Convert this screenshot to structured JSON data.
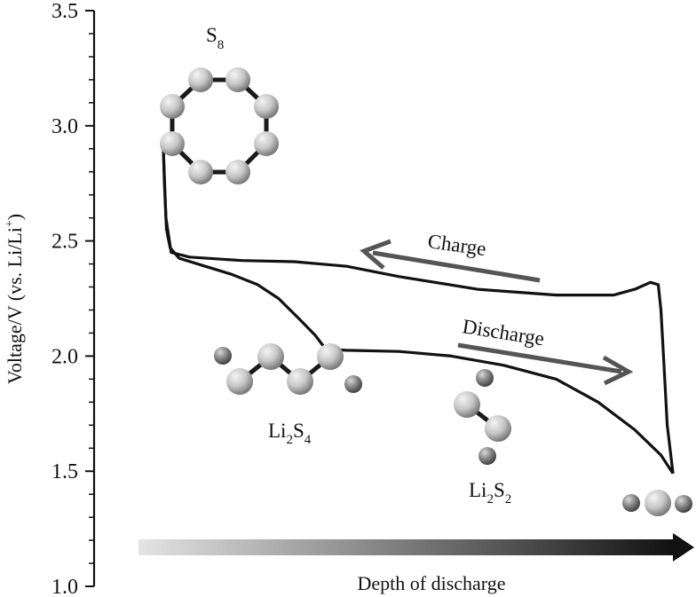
{
  "chart_data": {
    "type": "line",
    "title": "",
    "ylabel": "Voltage/V (vs. Li/Li+)",
    "ylabel_parts": {
      "main": "Voltage/V (vs. Li/Li",
      "sup": "+",
      "tail": ")"
    },
    "xlabel": "Depth of discharge",
    "ylim": [
      1.0,
      3.5
    ],
    "xlim": [
      0,
      1
    ],
    "y_ticks": [
      "1.0",
      "1.5",
      "2.0",
      "2.5",
      "3.0",
      "3.5"
    ],
    "x_axis": {
      "gradient_from": "#e4e4e4",
      "gradient_to": "#111111"
    },
    "grid": false,
    "series": [
      {
        "label": "discharge",
        "color": "#111111",
        "points": [
          [
            0.0,
            2.9
          ],
          [
            0.002,
            2.75
          ],
          [
            0.006,
            2.55
          ],
          [
            0.013,
            2.47
          ],
          [
            0.03,
            2.425
          ],
          [
            0.08,
            2.39
          ],
          [
            0.13,
            2.355
          ],
          [
            0.18,
            2.31
          ],
          [
            0.22,
            2.25
          ],
          [
            0.26,
            2.16
          ],
          [
            0.29,
            2.09
          ],
          [
            0.31,
            2.03
          ],
          [
            0.35,
            2.025
          ],
          [
            0.45,
            2.02
          ],
          [
            0.55,
            2.0
          ],
          [
            0.65,
            1.96
          ],
          [
            0.75,
            1.9
          ],
          [
            0.83,
            1.8
          ],
          [
            0.9,
            1.68
          ],
          [
            0.95,
            1.57
          ],
          [
            0.973,
            1.49
          ]
        ]
      },
      {
        "label": "charge",
        "color": "#111111",
        "points": [
          [
            0.973,
            1.49
          ],
          [
            0.962,
            1.7
          ],
          [
            0.955,
            2.0
          ],
          [
            0.95,
            2.2
          ],
          [
            0.945,
            2.31
          ],
          [
            0.93,
            2.32
          ],
          [
            0.9,
            2.29
          ],
          [
            0.86,
            2.265
          ],
          [
            0.75,
            2.265
          ],
          [
            0.6,
            2.29
          ],
          [
            0.45,
            2.345
          ],
          [
            0.35,
            2.39
          ],
          [
            0.25,
            2.41
          ],
          [
            0.15,
            2.415
          ],
          [
            0.05,
            2.43
          ],
          [
            0.015,
            2.45
          ],
          [
            0.005,
            2.6
          ],
          [
            0.0,
            2.9
          ]
        ]
      }
    ],
    "annotations": {
      "charge": {
        "text": "Charge",
        "color": "#555555"
      },
      "discharge": {
        "text": "Discharge",
        "color": "#555555"
      }
    },
    "species": {
      "s8": {
        "sym": "S",
        "sub": "8",
        "colors": {
          "atom_light": "#e8e8e8",
          "atom_dark": "#7a7a7a",
          "bond": "#1a1a1a"
        }
      },
      "li2s4": {
        "li": "Li",
        "li_sub": "2",
        "s": "S",
        "s_sub": "4"
      },
      "li2s2": {
        "li": "Li",
        "li_sub": "2",
        "s": "S",
        "s_sub": "2"
      },
      "li2s": {
        "note": ""
      }
    }
  }
}
